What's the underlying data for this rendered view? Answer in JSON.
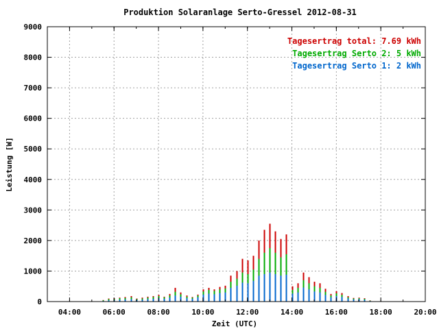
{
  "chart_data": {
    "type": "bar",
    "title": "Produktion Solaranlage Serto-Gressel 2012-08-31",
    "xlabel": "Zeit (UTC)",
    "ylabel": "Leistung [W]",
    "xlim": [
      3.0,
      20.0
    ],
    "ylim": [
      0,
      9000
    ],
    "grid": true,
    "legend_position": "top-right",
    "xticks": [
      {
        "value": 4,
        "label": "04:00"
      },
      {
        "value": 6,
        "label": "06:00"
      },
      {
        "value": 8,
        "label": "08:00"
      },
      {
        "value": 10,
        "label": "10:00"
      },
      {
        "value": 12,
        "label": "12:00"
      },
      {
        "value": 14,
        "label": "14:00"
      },
      {
        "value": 16,
        "label": "16:00"
      },
      {
        "value": 18,
        "label": "18:00"
      },
      {
        "value": 20,
        "label": "20:00"
      }
    ],
    "yticks": [
      0,
      1000,
      2000,
      3000,
      4000,
      5000,
      6000,
      7000,
      8000,
      9000
    ],
    "legend": [
      {
        "text": "Tagesertrag total: 7.69 kWh",
        "color": "#cc0000"
      },
      {
        "text": "Tagesertrag Serto 2: 5 kWh",
        "color": "#00aa00"
      },
      {
        "text": "Tagesertrag Serto 1: 2 kWh",
        "color": "#0066cc"
      }
    ],
    "series": [
      {
        "name": "total",
        "color": "#cc0000",
        "points": [
          [
            5.5,
            50
          ],
          [
            5.75,
            100
          ],
          [
            6.0,
            110
          ],
          [
            6.25,
            130
          ],
          [
            6.5,
            150
          ],
          [
            6.75,
            180
          ],
          [
            7.0,
            100
          ],
          [
            7.25,
            130
          ],
          [
            7.5,
            160
          ],
          [
            7.75,
            180
          ],
          [
            8.0,
            220
          ],
          [
            8.25,
            160
          ],
          [
            8.5,
            250
          ],
          [
            8.75,
            450
          ],
          [
            9.0,
            300
          ],
          [
            9.25,
            200
          ],
          [
            9.5,
            150
          ],
          [
            9.75,
            230
          ],
          [
            10.0,
            400
          ],
          [
            10.25,
            450
          ],
          [
            10.5,
            400
          ],
          [
            10.75,
            480
          ],
          [
            11.0,
            520
          ],
          [
            11.25,
            850
          ],
          [
            11.5,
            1000
          ],
          [
            11.75,
            1400
          ],
          [
            12.0,
            1350
          ],
          [
            12.25,
            1500
          ],
          [
            12.5,
            2000
          ],
          [
            12.75,
            2350
          ],
          [
            13.0,
            2550
          ],
          [
            13.25,
            2300
          ],
          [
            13.5,
            2050
          ],
          [
            13.75,
            2200
          ],
          [
            14.0,
            500
          ],
          [
            14.25,
            600
          ],
          [
            14.5,
            950
          ],
          [
            14.75,
            800
          ],
          [
            15.0,
            650
          ],
          [
            15.25,
            600
          ],
          [
            15.5,
            420
          ],
          [
            15.75,
            250
          ],
          [
            16.0,
            340
          ],
          [
            16.25,
            280
          ],
          [
            16.5,
            180
          ],
          [
            16.75,
            120
          ],
          [
            17.0,
            130
          ],
          [
            17.25,
            110
          ],
          [
            17.5,
            40
          ]
        ]
      },
      {
        "name": "Serto 2",
        "color": "#00aa00",
        "points": [
          [
            5.5,
            40
          ],
          [
            5.75,
            80
          ],
          [
            6.0,
            90
          ],
          [
            6.25,
            110
          ],
          [
            6.5,
            120
          ],
          [
            6.75,
            140
          ],
          [
            7.0,
            80
          ],
          [
            7.25,
            100
          ],
          [
            7.5,
            130
          ],
          [
            7.75,
            150
          ],
          [
            8.0,
            180
          ],
          [
            8.25,
            140
          ],
          [
            8.5,
            200
          ],
          [
            8.75,
            320
          ],
          [
            9.0,
            240
          ],
          [
            9.25,
            160
          ],
          [
            9.5,
            130
          ],
          [
            9.75,
            200
          ],
          [
            10.0,
            330
          ],
          [
            10.25,
            380
          ],
          [
            10.5,
            350
          ],
          [
            10.75,
            400
          ],
          [
            11.0,
            430
          ],
          [
            11.25,
            650
          ],
          [
            11.5,
            750
          ],
          [
            11.75,
            950
          ],
          [
            12.0,
            900
          ],
          [
            12.25,
            1050
          ],
          [
            12.5,
            1400
          ],
          [
            12.75,
            1600
          ],
          [
            13.0,
            1750
          ],
          [
            13.25,
            1600
          ],
          [
            13.5,
            1450
          ],
          [
            13.75,
            1550
          ],
          [
            14.0,
            380
          ],
          [
            14.25,
            450
          ],
          [
            14.5,
            700
          ],
          [
            14.75,
            600
          ],
          [
            15.0,
            500
          ],
          [
            15.25,
            450
          ],
          [
            15.5,
            320
          ],
          [
            15.75,
            200
          ],
          [
            16.0,
            270
          ],
          [
            16.25,
            220
          ],
          [
            16.5,
            140
          ],
          [
            16.75,
            100
          ],
          [
            17.0,
            110
          ],
          [
            17.25,
            90
          ],
          [
            17.5,
            30
          ]
        ]
      },
      {
        "name": "Serto 1",
        "color": "#0066cc",
        "points": [
          [
            5.5,
            20
          ],
          [
            5.75,
            40
          ],
          [
            6.0,
            50
          ],
          [
            6.25,
            60
          ],
          [
            6.5,
            70
          ],
          [
            6.75,
            80
          ],
          [
            7.0,
            50
          ],
          [
            7.25,
            60
          ],
          [
            7.5,
            80
          ],
          [
            7.75,
            90
          ],
          [
            8.0,
            110
          ],
          [
            8.25,
            90
          ],
          [
            8.5,
            130
          ],
          [
            8.75,
            200
          ],
          [
            9.0,
            160
          ],
          [
            9.25,
            110
          ],
          [
            9.5,
            90
          ],
          [
            9.75,
            140
          ],
          [
            10.0,
            230
          ],
          [
            10.25,
            260
          ],
          [
            10.5,
            240
          ],
          [
            10.75,
            280
          ],
          [
            11.0,
            300
          ],
          [
            11.25,
            450
          ],
          [
            11.5,
            520
          ],
          [
            11.75,
            620
          ],
          [
            12.0,
            600
          ],
          [
            12.25,
            680
          ],
          [
            12.5,
            850
          ],
          [
            12.75,
            900
          ],
          [
            13.0,
            950
          ],
          [
            13.25,
            900
          ],
          [
            13.5,
            850
          ],
          [
            13.75,
            880
          ],
          [
            14.0,
            260
          ],
          [
            14.25,
            300
          ],
          [
            14.5,
            460
          ],
          [
            14.75,
            400
          ],
          [
            15.0,
            330
          ],
          [
            15.25,
            300
          ],
          [
            15.5,
            220
          ],
          [
            15.75,
            140
          ],
          [
            16.0,
            180
          ],
          [
            16.25,
            150
          ],
          [
            16.5,
            100
          ],
          [
            16.75,
            70
          ],
          [
            17.0,
            80
          ],
          [
            17.25,
            60
          ],
          [
            17.5,
            20
          ]
        ]
      }
    ]
  }
}
